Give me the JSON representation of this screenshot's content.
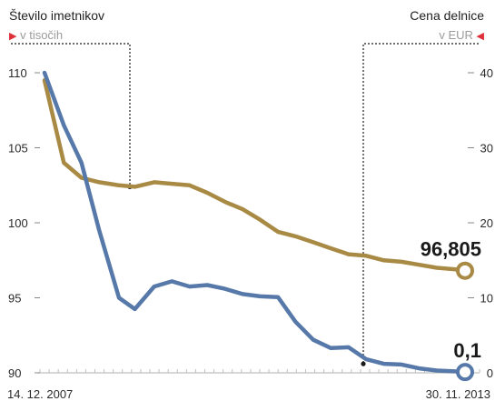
{
  "header": {
    "left_title": "Število imetnikov",
    "left_unit": "v tisočih",
    "right_title": "Cena delnice",
    "right_unit": "v EUR",
    "arrow_color": "#e0303a"
  },
  "chart_data": {
    "type": "line",
    "x_start_label": "14. 12. 2007",
    "x_end_label": "30. 11. 2013",
    "left_axis": {
      "ticks": [
        110,
        105,
        100,
        95,
        90
      ],
      "ylim": [
        90,
        111
      ]
    },
    "right_axis": {
      "ticks": [
        40,
        30,
        20,
        10,
        0
      ],
      "ylim": [
        0,
        42
      ]
    },
    "x": [
      0,
      0.046,
      0.088,
      0.13,
      0.177,
      0.215,
      0.261,
      0.303,
      0.345,
      0.387,
      0.429,
      0.471,
      0.513,
      0.555,
      0.597,
      0.639,
      0.681,
      0.723,
      0.765,
      0.807,
      0.849,
      0.891,
      0.933,
      0.975,
      1
    ],
    "series": [
      {
        "axis": "left",
        "color": "#a88a45",
        "end_label": "96,805",
        "values": [
          109.5,
          104,
          103,
          102.7,
          102.5,
          102.4,
          102.7,
          102.6,
          102.5,
          102,
          101.4,
          100.9,
          100.2,
          99.4,
          99.1,
          98.7,
          98.3,
          97.9,
          97.8,
          97.5,
          97.4,
          97.2,
          97.0,
          96.9,
          96.805
        ]
      },
      {
        "axis": "right",
        "color": "#5679a9",
        "end_label": "0,1",
        "values": [
          40,
          33,
          28,
          19,
          10,
          8.5,
          11.5,
          12.2,
          11.5,
          11.7,
          11.2,
          10.5,
          10.2,
          10.1,
          6.8,
          4.4,
          3.3,
          3.4,
          1.8,
          1.2,
          1.1,
          0.6,
          0.3,
          0.2,
          0.1
        ]
      }
    ],
    "annotations": [
      {
        "series": 0,
        "point": 5
      },
      {
        "series": 1,
        "point": 19
      }
    ]
  }
}
